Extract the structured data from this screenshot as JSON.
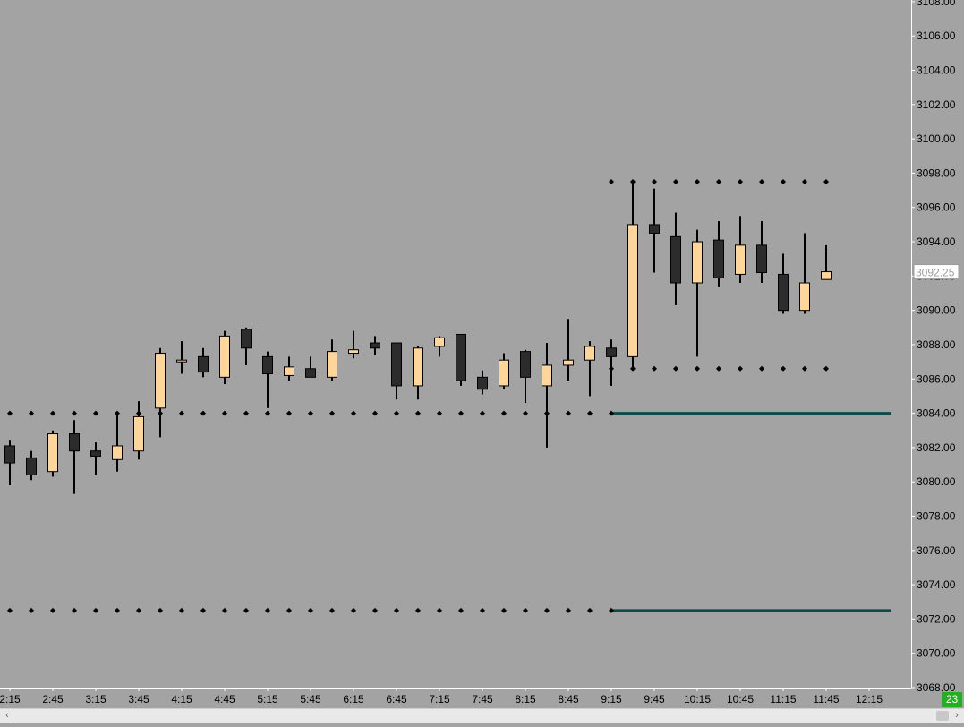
{
  "chart_data": {
    "type": "candlestick",
    "x_ticks": [
      "2:15",
      "2:45",
      "3:15",
      "3:45",
      "4:15",
      "4:45",
      "5:15",
      "5:45",
      "6:15",
      "6:45",
      "7:15",
      "7:45",
      "8:15",
      "8:45",
      "9:15",
      "9:45",
      "10:15",
      "10:45",
      "11:15",
      "11:45",
      "12:15"
    ],
    "y_ticks": [
      "3068.00",
      "3070.00",
      "3072.00",
      "3074.00",
      "3076.00",
      "3078.00",
      "3080.00",
      "3082.00",
      "3084.00",
      "3086.00",
      "3088.00",
      "3090.00",
      "3092.00",
      "3094.00",
      "3096.00",
      "3098.00",
      "3100.00",
      "3102.00",
      "3104.00",
      "3106.00",
      "3108.00"
    ],
    "ylim": [
      3068,
      3108.1
    ],
    "last_price": "3092.25",
    "colors": {
      "background": "#a3a3a3",
      "up": "#fed69a",
      "down": "#2c2c2c",
      "level_line": "#0e4a4e",
      "dots": "#000000"
    },
    "candles": [
      {
        "t": "2:15",
        "o": 3082.1,
        "h": 3082.4,
        "l": 3079.8,
        "c": 3081.1
      },
      {
        "t": "2:30",
        "o": 3081.4,
        "h": 3081.8,
        "l": 3080.1,
        "c": 3080.4
      },
      {
        "t": "2:45",
        "o": 3080.6,
        "h": 3083.0,
        "l": 3080.3,
        "c": 3082.8
      },
      {
        "t": "3:00",
        "o": 3082.8,
        "h": 3083.6,
        "l": 3079.3,
        "c": 3081.8
      },
      {
        "t": "3:15",
        "o": 3081.8,
        "h": 3082.3,
        "l": 3080.4,
        "c": 3081.5
      },
      {
        "t": "3:30",
        "o": 3081.3,
        "h": 3084.0,
        "l": 3080.6,
        "c": 3082.1
      },
      {
        "t": "3:45",
        "o": 3081.8,
        "h": 3084.7,
        "l": 3081.3,
        "c": 3083.8
      },
      {
        "t": "4:00",
        "o": 3084.3,
        "h": 3087.8,
        "l": 3082.6,
        "c": 3087.5
      },
      {
        "t": "4:15",
        "o": 3087.1,
        "h": 3088.2,
        "l": 3086.3,
        "c": 3087.1
      },
      {
        "t": "4:30",
        "o": 3087.3,
        "h": 3087.8,
        "l": 3086.1,
        "c": 3086.4
      },
      {
        "t": "4:45",
        "o": 3086.1,
        "h": 3088.8,
        "l": 3085.7,
        "c": 3088.5
      },
      {
        "t": "5:00",
        "o": 3088.9,
        "h": 3089.0,
        "l": 3086.8,
        "c": 3087.8
      },
      {
        "t": "5:15",
        "o": 3087.3,
        "h": 3087.6,
        "l": 3084.3,
        "c": 3086.3
      },
      {
        "t": "5:30",
        "o": 3086.2,
        "h": 3087.3,
        "l": 3085.9,
        "c": 3086.7
      },
      {
        "t": "5:45",
        "o": 3086.6,
        "h": 3087.3,
        "l": 3086.1,
        "c": 3086.1
      },
      {
        "t": "6:00",
        "o": 3086.1,
        "h": 3088.3,
        "l": 3085.9,
        "c": 3087.6
      },
      {
        "t": "6:15",
        "o": 3087.5,
        "h": 3088.8,
        "l": 3087.2,
        "c": 3087.7
      },
      {
        "t": "6:30",
        "o": 3088.1,
        "h": 3088.5,
        "l": 3087.4,
        "c": 3087.8
      },
      {
        "t": "6:45",
        "o": 3088.1,
        "h": 3088.1,
        "l": 3084.8,
        "c": 3085.6
      },
      {
        "t": "7:00",
        "o": 3085.6,
        "h": 3087.9,
        "l": 3084.8,
        "c": 3087.8
      },
      {
        "t": "7:15",
        "o": 3087.9,
        "h": 3088.5,
        "l": 3087.3,
        "c": 3088.4
      },
      {
        "t": "7:30",
        "o": 3088.6,
        "h": 3088.6,
        "l": 3085.6,
        "c": 3085.9
      },
      {
        "t": "7:45",
        "o": 3086.1,
        "h": 3086.5,
        "l": 3085.1,
        "c": 3085.4
      },
      {
        "t": "8:00",
        "o": 3085.6,
        "h": 3087.5,
        "l": 3085.4,
        "c": 3087.1
      },
      {
        "t": "8:15",
        "o": 3087.6,
        "h": 3087.7,
        "l": 3084.6,
        "c": 3086.1
      },
      {
        "t": "8:30",
        "o": 3085.6,
        "h": 3088.1,
        "l": 3082.0,
        "c": 3086.8
      },
      {
        "t": "8:45",
        "o": 3086.8,
        "h": 3089.5,
        "l": 3085.9,
        "c": 3087.1
      },
      {
        "t": "9:00",
        "o": 3087.1,
        "h": 3088.2,
        "l": 3085.0,
        "c": 3087.9
      },
      {
        "t": "9:15",
        "o": 3087.8,
        "h": 3088.3,
        "l": 3085.6,
        "c": 3087.3
      },
      {
        "t": "9:30",
        "o": 3087.3,
        "h": 3097.6,
        "l": 3086.6,
        "c": 3095.0
      },
      {
        "t": "9:45",
        "o": 3095.0,
        "h": 3097.1,
        "l": 3092.2,
        "c": 3094.5
      },
      {
        "t": "10:00",
        "o": 3094.3,
        "h": 3095.7,
        "l": 3090.3,
        "c": 3091.6
      },
      {
        "t": "10:15",
        "o": 3091.6,
        "h": 3094.7,
        "l": 3087.3,
        "c": 3094.0
      },
      {
        "t": "10:30",
        "o": 3094.1,
        "h": 3095.2,
        "l": 3091.4,
        "c": 3091.9
      },
      {
        "t": "10:45",
        "o": 3092.1,
        "h": 3095.5,
        "l": 3091.6,
        "c": 3093.8
      },
      {
        "t": "11:00",
        "o": 3093.8,
        "h": 3095.2,
        "l": 3091.6,
        "c": 3092.2
      },
      {
        "t": "11:15",
        "o": 3092.1,
        "h": 3093.3,
        "l": 3089.8,
        "c": 3090.0
      },
      {
        "t": "11:30",
        "o": 3090.0,
        "h": 3094.5,
        "l": 3089.8,
        "c": 3091.6
      },
      {
        "t": "11:45",
        "o": 3091.8,
        "h": 3093.8,
        "l": 3091.8,
        "c": 3092.25
      }
    ],
    "dot_levels": [
      {
        "price": 3084.0,
        "from": "2:15",
        "to": "9:15"
      },
      {
        "price": 3072.5,
        "from": "2:15",
        "to": "9:15"
      },
      {
        "price": 3097.5,
        "from": "9:15",
        "to": "11:45"
      },
      {
        "price": 3086.6,
        "from": "9:15",
        "to": "11:45"
      }
    ],
    "line_levels": [
      {
        "price": 3084.0,
        "from": "9:15"
      },
      {
        "price": 3072.5,
        "from": "9:15"
      }
    ]
  },
  "status": {
    "bar_count": "23"
  },
  "scrollbar": {
    "left_arrow": "‹",
    "right_arrow": "›"
  }
}
